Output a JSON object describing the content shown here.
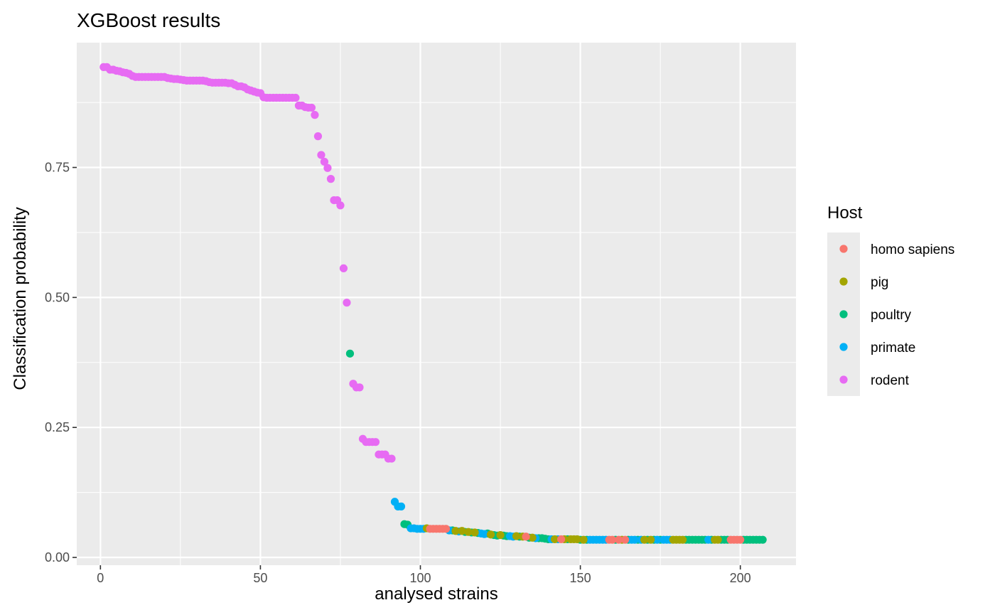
{
  "chart_data": {
    "type": "scatter",
    "title": "XGBoost results",
    "xlabel": "analysed strains",
    "ylabel": "Classification probability",
    "xlim": [
      -7.4,
      217.4
    ],
    "ylim": [
      -0.015,
      0.99
    ],
    "x_ticks": [
      0,
      50,
      100,
      150,
      200
    ],
    "x_tick_labels": [
      "0",
      "50",
      "100",
      "150",
      "200"
    ],
    "y_ticks": [
      0.0,
      0.25,
      0.5,
      0.75
    ],
    "y_tick_labels": [
      "0.00",
      "0.25",
      "0.50",
      "0.75"
    ],
    "grid": true,
    "legend": {
      "title": "Host",
      "placement": "right",
      "entries": [
        {
          "label": "homo sapiens",
          "color": "#F8766D"
        },
        {
          "label": "pig",
          "color": "#A3A500"
        },
        {
          "label": "poultry",
          "color": "#00BF7D"
        },
        {
          "label": "primate",
          "color": "#00B0F6"
        },
        {
          "label": "rodent",
          "color": "#E76BF3"
        }
      ]
    },
    "series": [
      {
        "name": "rodent",
        "color": "#E76BF3",
        "x": [
          1,
          2,
          3,
          4,
          5,
          6,
          7,
          8,
          9,
          10,
          11,
          12,
          13,
          14,
          15,
          16,
          17,
          18,
          19,
          20,
          21,
          22,
          23,
          24,
          25,
          26,
          27,
          28,
          29,
          30,
          31,
          32,
          33,
          34,
          35,
          36,
          37,
          38,
          39,
          40,
          41,
          42,
          43,
          44,
          45,
          46,
          47,
          48,
          49,
          50,
          51,
          52,
          53,
          54,
          55,
          56,
          57,
          58,
          59,
          60,
          61,
          62,
          63,
          64,
          65,
          66,
          67,
          68,
          69,
          70,
          71,
          72,
          73,
          74,
          75,
          76,
          77,
          79,
          80,
          81,
          82,
          83,
          84,
          85,
          86,
          87,
          88,
          89,
          90,
          91
        ],
        "y": [
          0.943,
          0.943,
          0.938,
          0.938,
          0.936,
          0.935,
          0.933,
          0.932,
          0.93,
          0.926,
          0.924,
          0.924,
          0.924,
          0.924,
          0.924,
          0.924,
          0.924,
          0.924,
          0.924,
          0.924,
          0.922,
          0.921,
          0.92,
          0.92,
          0.919,
          0.918,
          0.917,
          0.917,
          0.917,
          0.917,
          0.917,
          0.917,
          0.916,
          0.914,
          0.913,
          0.913,
          0.913,
          0.913,
          0.913,
          0.912,
          0.912,
          0.909,
          0.906,
          0.906,
          0.904,
          0.9,
          0.898,
          0.896,
          0.894,
          0.893,
          0.885,
          0.884,
          0.884,
          0.884,
          0.884,
          0.884,
          0.884,
          0.884,
          0.884,
          0.884,
          0.884,
          0.869,
          0.869,
          0.866,
          0.865,
          0.865,
          0.851,
          0.81,
          0.774,
          0.761,
          0.749,
          0.728,
          0.687,
          0.687,
          0.677,
          0.556,
          0.49,
          0.334,
          0.327,
          0.327,
          0.228,
          0.222,
          0.222,
          0.222,
          0.222,
          0.198,
          0.198,
          0.198,
          0.19,
          0.19
        ]
      },
      {
        "name": "poultry",
        "color": "#00BF7D",
        "x": [
          78,
          95,
          96,
          110,
          114,
          116,
          118,
          121,
          123,
          124,
          126,
          127,
          131,
          134,
          137,
          138,
          139,
          140,
          146,
          150,
          152,
          161,
          165,
          168,
          171,
          173,
          175,
          183,
          184,
          185,
          186,
          187,
          188,
          189,
          191,
          194,
          195,
          196,
          201,
          202,
          203,
          204,
          205,
          206,
          207
        ],
        "y": [
          0.392,
          0.064,
          0.063,
          0.052,
          0.049,
          0.048,
          0.047,
          0.046,
          0.043,
          0.042,
          0.042,
          0.041,
          0.04,
          0.038,
          0.037,
          0.037,
          0.036,
          0.035,
          0.035,
          0.034,
          0.034,
          0.034,
          0.034,
          0.034,
          0.034,
          0.034,
          0.034,
          0.034,
          0.034,
          0.034,
          0.034,
          0.034,
          0.034,
          0.034,
          0.034,
          0.034,
          0.034,
          0.034,
          0.034,
          0.034,
          0.034,
          0.034,
          0.034,
          0.034,
          0.034
        ]
      },
      {
        "name": "primate",
        "color": "#00B0F6",
        "x": [
          92,
          93,
          94,
          97,
          98,
          99,
          100,
          101,
          109,
          112,
          119,
          120,
          128,
          129,
          136,
          141,
          143,
          153,
          154,
          155,
          156,
          157,
          158,
          166,
          167,
          169,
          174,
          176,
          177,
          178,
          190
        ],
        "y": [
          0.107,
          0.098,
          0.098,
          0.056,
          0.056,
          0.055,
          0.055,
          0.055,
          0.052,
          0.05,
          0.046,
          0.045,
          0.041,
          0.04,
          0.037,
          0.035,
          0.035,
          0.034,
          0.034,
          0.034,
          0.034,
          0.034,
          0.034,
          0.034,
          0.034,
          0.034,
          0.034,
          0.034,
          0.034,
          0.034,
          0.034
        ]
      },
      {
        "name": "pig",
        "color": "#A3A500",
        "x": [
          102,
          111,
          113,
          115,
          117,
          122,
          125,
          130,
          132,
          135,
          142,
          145,
          147,
          148,
          149,
          151,
          163,
          170,
          172,
          179,
          180,
          181,
          182,
          192,
          193
        ],
        "y": [
          0.056,
          0.051,
          0.051,
          0.049,
          0.048,
          0.044,
          0.043,
          0.041,
          0.04,
          0.038,
          0.035,
          0.035,
          0.035,
          0.035,
          0.035,
          0.034,
          0.034,
          0.034,
          0.034,
          0.034,
          0.034,
          0.034,
          0.034,
          0.034,
          0.034
        ]
      },
      {
        "name": "homo sapiens",
        "color": "#F8766D",
        "x": [
          103,
          104,
          105,
          106,
          107,
          108,
          133,
          144,
          159,
          160,
          162,
          164,
          197,
          198,
          199,
          200
        ],
        "y": [
          0.055,
          0.055,
          0.055,
          0.055,
          0.055,
          0.055,
          0.04,
          0.035,
          0.034,
          0.034,
          0.034,
          0.034,
          0.034,
          0.034,
          0.034,
          0.034
        ]
      }
    ]
  }
}
